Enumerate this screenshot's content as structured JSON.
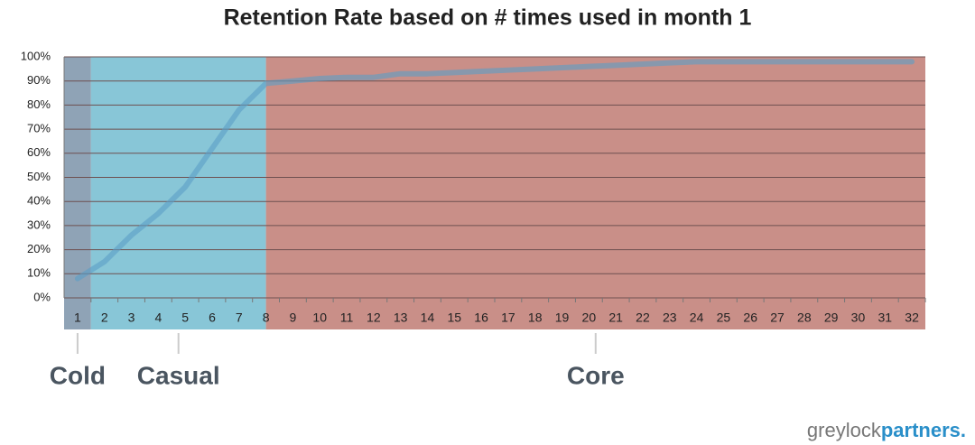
{
  "chart_data": {
    "type": "line",
    "title": "Retention Rate based on # times used in month 1",
    "x": [
      1,
      2,
      3,
      4,
      5,
      6,
      7,
      8,
      9,
      10,
      11,
      12,
      13,
      14,
      15,
      16,
      17,
      18,
      19,
      20,
      21,
      22,
      23,
      24,
      25,
      26,
      27,
      28,
      29,
      30,
      31,
      32
    ],
    "values": [
      8,
      15,
      26,
      35,
      46,
      62,
      78,
      89,
      90,
      91,
      91.5,
      91.5,
      93,
      93,
      93.5,
      94,
      94.5,
      95,
      95.5,
      96,
      96.5,
      97,
      97.5,
      98,
      98,
      98,
      98,
      98,
      98,
      98,
      98,
      98
    ],
    "color": "#5b9fc7",
    "xlim": [
      0.5,
      32.5
    ],
    "ylim": [
      0,
      100
    ],
    "yticks": [
      {
        "value": 0,
        "label": "0%"
      },
      {
        "value": 10,
        "label": "10%"
      },
      {
        "value": 20,
        "label": "20%"
      },
      {
        "value": 30,
        "label": "30%"
      },
      {
        "value": 40,
        "label": "40%"
      },
      {
        "value": 50,
        "label": "50%"
      },
      {
        "value": 60,
        "label": "60%"
      },
      {
        "value": 70,
        "label": "70%"
      },
      {
        "value": 80,
        "label": "80%"
      },
      {
        "value": 90,
        "label": "90%"
      },
      {
        "value": 100,
        "label": "100%"
      }
    ],
    "grid": true,
    "regions": [
      {
        "label": "Cold",
        "xrange": [
          0.5,
          1.5
        ],
        "color": "#8fa3b6"
      },
      {
        "label": "Casual",
        "xrange": [
          1.5,
          8
        ],
        "color": "#88c6d7"
      },
      {
        "label": "Core",
        "xrange": [
          8,
          32.5
        ],
        "color": "#c98f88"
      }
    ]
  },
  "logo": {
    "part1": "greylock",
    "part2": "partners."
  }
}
